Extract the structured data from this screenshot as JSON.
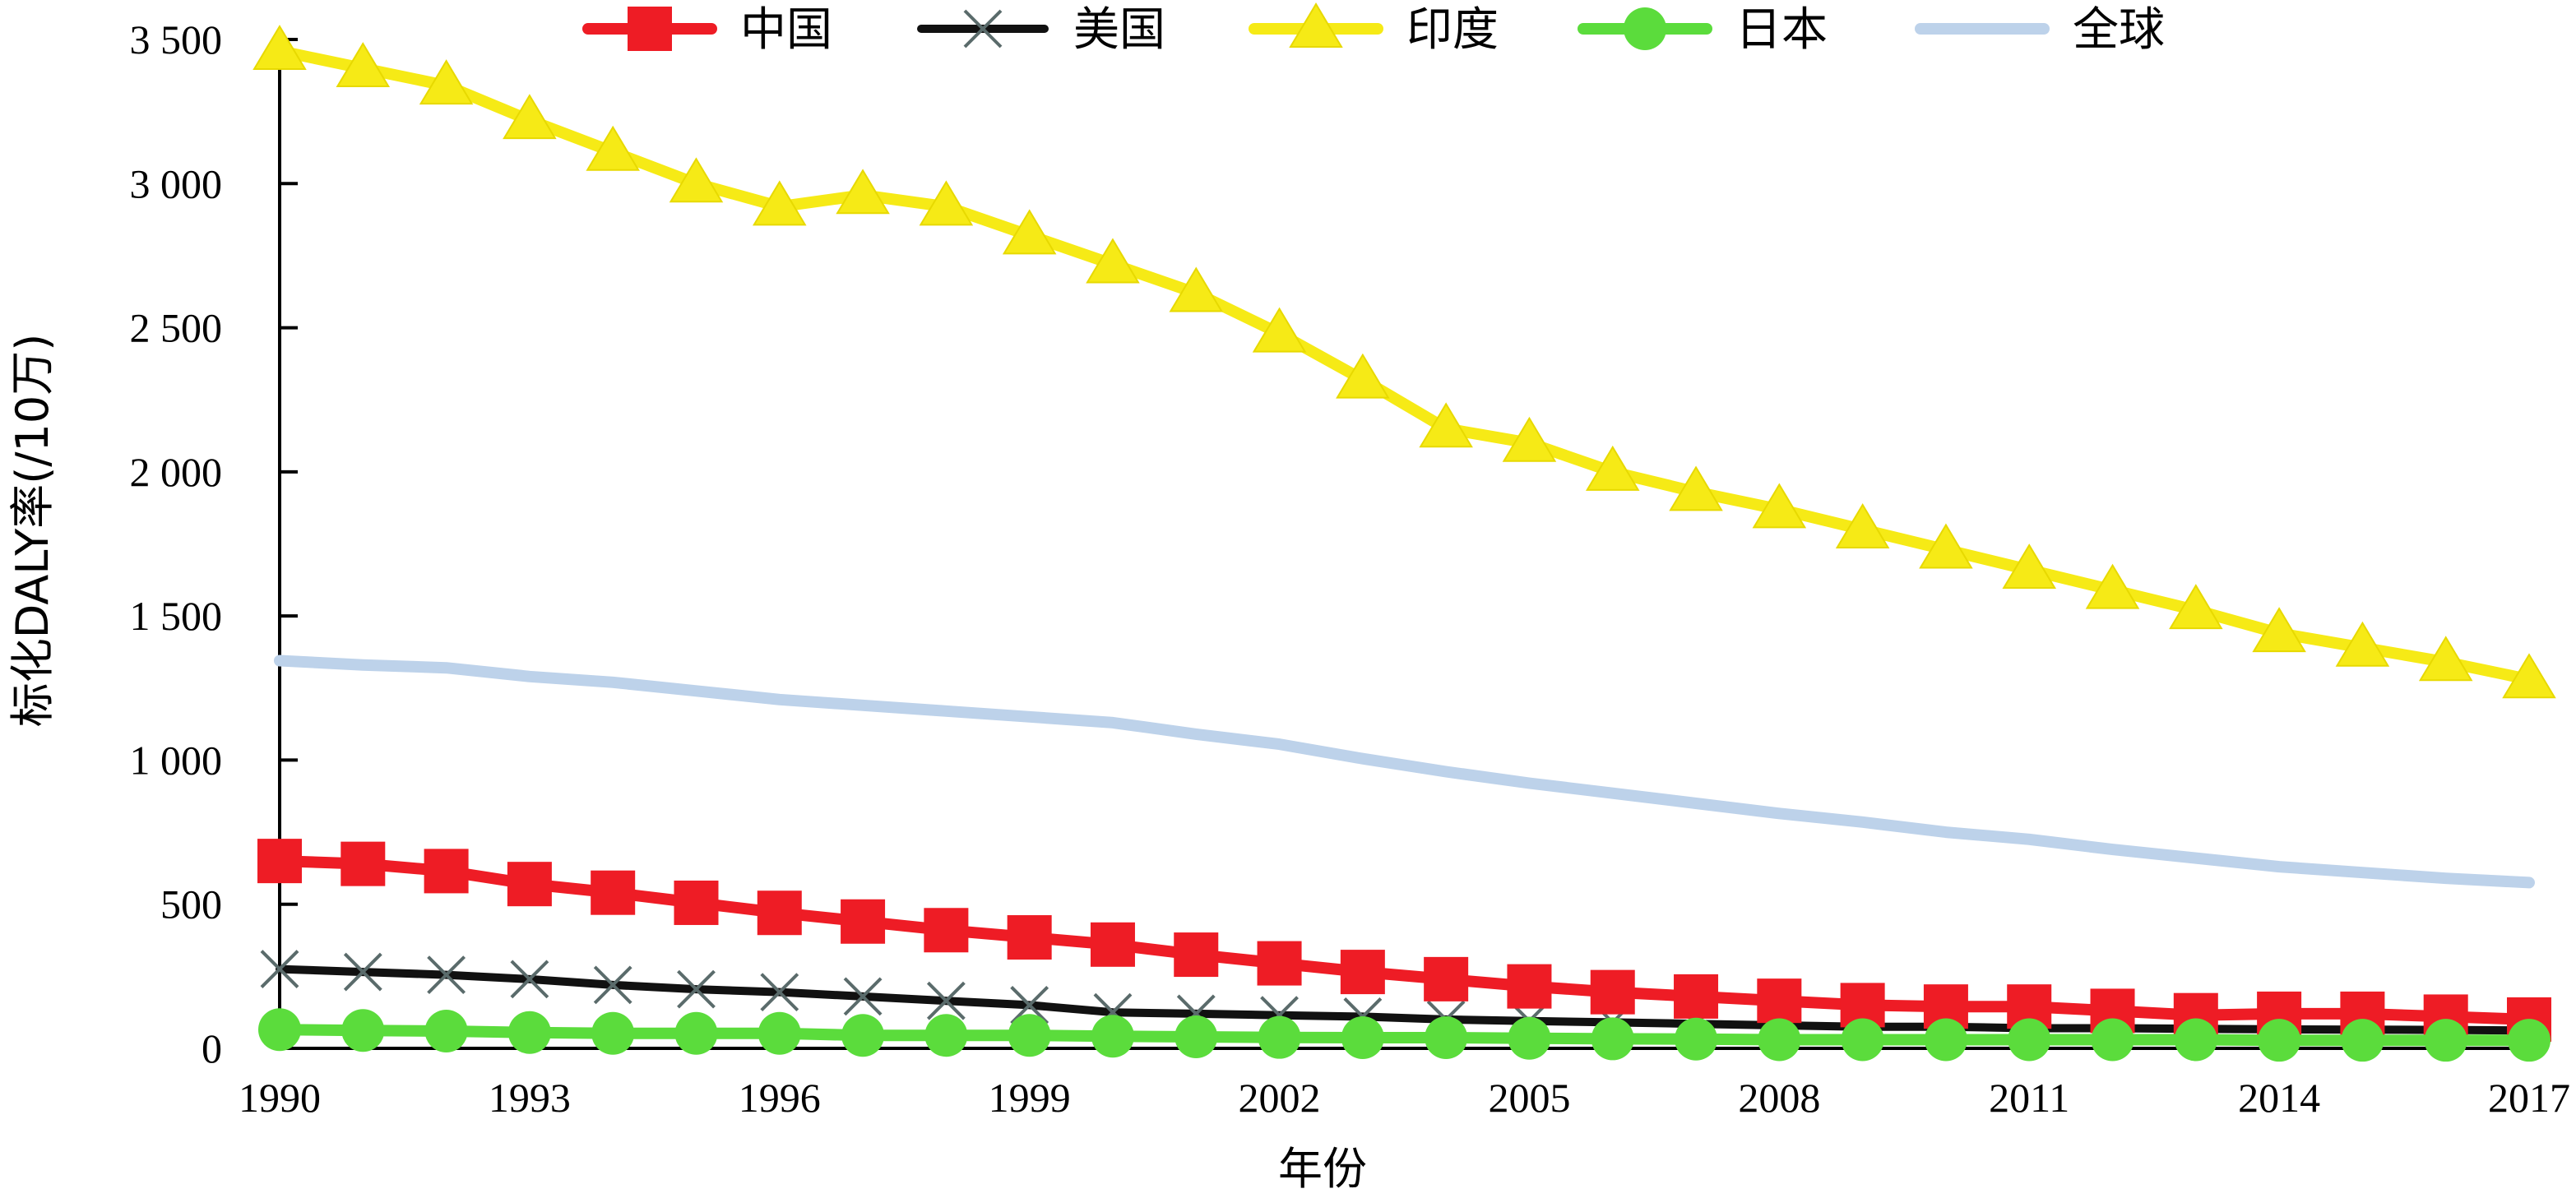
{
  "chart_data": {
    "type": "line",
    "title": "",
    "xlabel": "年份",
    "ylabel": "标化DALY率(/10万)",
    "xlim": [
      1990,
      2017
    ],
    "ylim": [
      0,
      3500
    ],
    "x_ticks": [
      "1990",
      "1993",
      "1996",
      "1999",
      "2002",
      "2005",
      "2008",
      "2011",
      "2014",
      "2017"
    ],
    "y_ticks": [
      {
        "value": 0,
        "label": "0"
      },
      {
        "value": 500,
        "label": "500"
      },
      {
        "value": 1000,
        "label": "1 000"
      },
      {
        "value": 1500,
        "label": "1 500"
      },
      {
        "value": 2000,
        "label": "2 000"
      },
      {
        "value": 2500,
        "label": "2 500"
      },
      {
        "value": 3000,
        "label": "3 000"
      },
      {
        "value": 3500,
        "label": "3 500"
      }
    ],
    "grid": false,
    "legend_position": "top",
    "x": [
      1990,
      1991,
      1992,
      1993,
      1994,
      1995,
      1996,
      1997,
      1998,
      1999,
      2000,
      2001,
      2002,
      2003,
      2004,
      2005,
      2006,
      2007,
      2008,
      2009,
      2010,
      2011,
      2012,
      2013,
      2014,
      2015,
      2016,
      2017
    ],
    "series": [
      {
        "name": "中国",
        "color": "#ee1c25",
        "marker": "square",
        "values": [
          650,
          640,
          615,
          570,
          540,
          505,
          470,
          440,
          410,
          385,
          360,
          325,
          295,
          265,
          240,
          215,
          195,
          180,
          165,
          150,
          145,
          145,
          130,
          115,
          120,
          120,
          110,
          100
        ]
      },
      {
        "name": "美国",
        "color": "#111111",
        "marker_color": "#5a6b6b",
        "marker": "x",
        "values": [
          275,
          265,
          255,
          240,
          220,
          205,
          195,
          180,
          165,
          150,
          125,
          120,
          115,
          110,
          100,
          95,
          90,
          85,
          80,
          75,
          75,
          70,
          70,
          68,
          66,
          65,
          64,
          62
        ]
      },
      {
        "name": "印度",
        "color": "#f6ea16",
        "marker": "triangle",
        "values": [
          3460,
          3400,
          3340,
          3220,
          3110,
          3000,
          2920,
          2960,
          2920,
          2820,
          2720,
          2620,
          2480,
          2320,
          2150,
          2100,
          2000,
          1930,
          1870,
          1800,
          1730,
          1660,
          1590,
          1520,
          1440,
          1390,
          1340,
          1280
        ]
      },
      {
        "name": "日本",
        "color": "#5bdc3c",
        "marker": "circle",
        "values": [
          65,
          62,
          60,
          55,
          52,
          52,
          52,
          45,
          45,
          45,
          42,
          40,
          38,
          37,
          37,
          35,
          33,
          32,
          30,
          30,
          30,
          30,
          30,
          30,
          28,
          28,
          28,
          28
        ]
      },
      {
        "name": "全球",
        "color": "#bdd2ea",
        "marker": "none",
        "values": [
          1345,
          1330,
          1320,
          1290,
          1270,
          1240,
          1210,
          1190,
          1170,
          1150,
          1130,
          1090,
          1055,
          1005,
          960,
          920,
          885,
          850,
          815,
          785,
          750,
          725,
          690,
          660,
          630,
          610,
          590,
          575
        ]
      }
    ]
  }
}
